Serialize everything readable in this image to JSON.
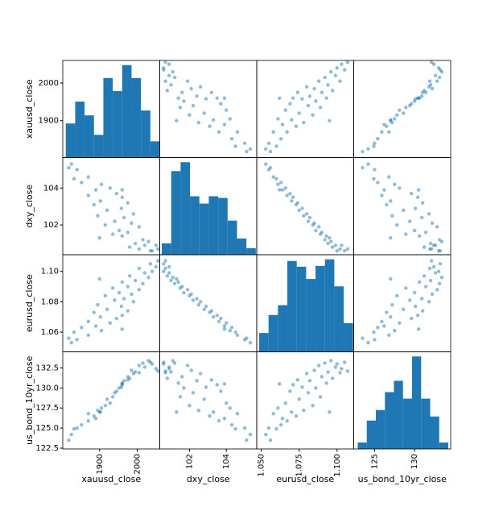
{
  "chart_data": {
    "type": "scatter_matrix",
    "color": "#1f77b4",
    "variables": [
      {
        "name": "xauusd_close",
        "lim": [
          1802,
          2060
        ],
        "ticks": [
          1900,
          2000
        ],
        "values": [
          1825,
          1840,
          1818,
          1870,
          1832,
          1905,
          1852,
          1890,
          1928,
          1870,
          1945,
          1902,
          1960,
          1885,
          1975,
          1920,
          1958,
          1895,
          1990,
          1940,
          1965,
          1915,
          1985,
          1952,
          2005,
          1935,
          1975,
          2015,
          1960,
          1995,
          2030,
          1980,
          2020,
          2040,
          2005,
          2050,
          2035,
          2055,
          1960,
          1900
        ],
        "hist": {
          "bins": [
            1810,
            1835,
            1860,
            1885,
            1910,
            1935,
            1960,
            1985,
            2010,
            2035,
            2060
          ],
          "counts": [
            42,
            69,
            52,
            28,
            98,
            82,
            114,
            98,
            58,
            20
          ]
        }
      },
      {
        "name": "dxy_close",
        "lim": [
          100.39,
          105.65
        ],
        "ticks": [
          102,
          104
        ],
        "values": [
          105.3,
          105.0,
          105.1,
          104.6,
          104.5,
          104.2,
          104.3,
          103.9,
          104.0,
          103.6,
          103.7,
          103.3,
          103.5,
          103.1,
          103.2,
          102.8,
          102.9,
          102.5,
          102.6,
          102.2,
          102.4,
          102.0,
          102.1,
          101.7,
          101.9,
          101.5,
          101.6,
          101.2,
          101.4,
          101.0,
          101.1,
          100.8,
          100.9,
          100.6,
          100.7,
          100.9,
          100.6,
          100.7,
          103.9,
          101.3
        ],
        "hist": {
          "bins": [
            100.5,
            101.01,
            101.52,
            102.03,
            102.54,
            103.05,
            103.56,
            104.07,
            104.58,
            105.09,
            105.6
          ],
          "counts": [
            14,
            103,
            114,
            72,
            63,
            72,
            70,
            42,
            20,
            8
          ]
        }
      },
      {
        "name": "eurusd_close",
        "lim": [
          1.047,
          1.111
        ],
        "ticks": [
          {
            "value": 1.05,
            "label": "1.050"
          },
          {
            "value": 1.075,
            "label": "1.075"
          },
          {
            "value": 1.1,
            "label": "1.100"
          }
        ],
        "yticks": [
          {
            "value": 1.06,
            "label": "1.06"
          },
          {
            "value": 1.08,
            "label": "1.08"
          },
          {
            "value": 1.1,
            "label": "1.10"
          }
        ],
        "values": [
          1.053,
          1.055,
          1.056,
          1.058,
          1.06,
          1.061,
          1.063,
          1.064,
          1.066,
          1.067,
          1.069,
          1.07,
          1.071,
          1.073,
          1.074,
          1.075,
          1.077,
          1.078,
          1.08,
          1.081,
          1.082,
          1.084,
          1.085,
          1.086,
          1.088,
          1.089,
          1.09,
          1.092,
          1.093,
          1.094,
          1.096,
          1.097,
          1.099,
          1.1,
          1.102,
          1.103,
          1.105,
          1.107,
          1.062,
          1.095
        ],
        "hist": {
          "bins": [
            1.0486,
            1.0548,
            1.061,
            1.0672,
            1.0734,
            1.0796,
            1.0858,
            1.092,
            1.0982,
            1.1044,
            1.1106
          ],
          "counts": [
            23,
            45,
            57,
            111,
            104,
            89,
            105,
            113,
            80,
            35
          ]
        }
      },
      {
        "name": "us_bond_10yr_close",
        "lim": [
          122.4,
          134.5
        ],
        "ticks": [
          125,
          130
        ],
        "yticks": [
          {
            "value": 122.5,
            "label": "122.5"
          },
          {
            "value": 125,
            "label": "125.0"
          },
          {
            "value": 127.5,
            "label": "127.5"
          },
          {
            "value": 130,
            "label": "130.0"
          },
          {
            "value": 132.5,
            "label": "132.5"
          }
        ],
        "values": [
          124.2,
          125.0,
          123.5,
          126.8,
          124.9,
          127.5,
          125.4,
          126.2,
          128.1,
          125.9,
          129.6,
          127.0,
          130.4,
          126.5,
          131.0,
          128.6,
          130.1,
          127.2,
          131.8,
          129.4,
          130.9,
          127.8,
          132.2,
          130.0,
          132.8,
          128.9,
          131.4,
          133.1,
          130.6,
          132.0,
          133.4,
          131.2,
          132.6,
          133.0,
          131.9,
          132.4,
          133.2,
          132.1,
          130.5,
          127.0
        ],
        "hist": {
          "bins": [
            122.9,
            124.03,
            125.16,
            126.29,
            127.42,
            128.55,
            129.68,
            130.81,
            131.94,
            133.07,
            134.2
          ],
          "counts": [
            8,
            35,
            48,
            70,
            84,
            62,
            114,
            62,
            40,
            8
          ]
        }
      }
    ]
  }
}
